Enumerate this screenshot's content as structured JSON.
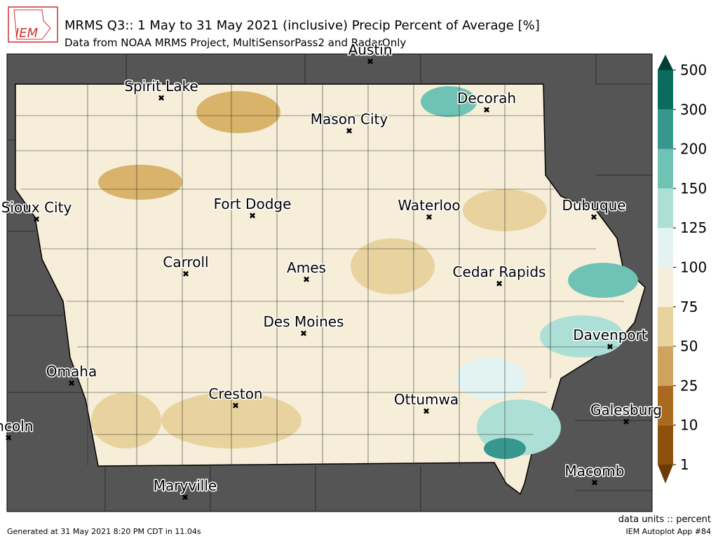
{
  "header": {
    "logo": "IEM",
    "title": "MRMS Q3:: 1 May to 31 May 2021 (inclusive) Precip Percent of Average [%]",
    "subtitle": "Data from NOAA MRMS Project, MultiSensorPass2 and RadarOnly"
  },
  "map": {
    "cities": [
      "Austin",
      "Spirit Lake",
      "Decorah",
      "Mason City",
      "Sioux City",
      "Fort Dodge",
      "Waterloo",
      "Dubuque",
      "Carroll",
      "Ames",
      "Cedar Rapids",
      "Des Moines",
      "Davenport",
      "Omaha",
      "Creston",
      "Ottumwa",
      "Galesburg",
      "Lincoln",
      "Macomb",
      "Maryville"
    ]
  },
  "colorbar": {
    "levels": [
      "1",
      "10",
      "25",
      "50",
      "75",
      "100",
      "125",
      "150",
      "200",
      "300",
      "500"
    ],
    "colors": [
      "#8c510a",
      "#a9691f",
      "#d0a45e",
      "#e8d39e",
      "#f6eed8",
      "#e2f3f1",
      "#acdfd5",
      "#6fc3b5",
      "#35978d",
      "#0a6b5f"
    ],
    "under": "#6b3a05",
    "over": "#013f36"
  },
  "footer": {
    "generated": "Generated at 31 May 2021 8:20 PM CDT in 11.04s",
    "units": "data units :: percent",
    "app": "IEM Autoplot App #84"
  }
}
